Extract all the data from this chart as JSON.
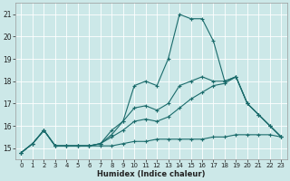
{
  "xlabel": "Humidex (Indice chaleur)",
  "bg_color": "#cce8e8",
  "grid_color": "#e0f0f0",
  "line_color": "#1a6b6b",
  "xlim": [
    -0.5,
    23.5
  ],
  "ylim": [
    14.5,
    21.5
  ],
  "xticks": [
    0,
    1,
    2,
    3,
    4,
    5,
    6,
    7,
    8,
    9,
    10,
    11,
    12,
    13,
    14,
    15,
    16,
    17,
    18,
    19,
    20,
    21,
    22,
    23
  ],
  "yticks": [
    15,
    16,
    17,
    18,
    19,
    20,
    21
  ],
  "series": [
    {
      "x": [
        0,
        1,
        2,
        3,
        4,
        5,
        6,
        7,
        8,
        9,
        10,
        11,
        12,
        13,
        14,
        15,
        16,
        17,
        18,
        19,
        20,
        21,
        22,
        23
      ],
      "y": [
        14.8,
        15.2,
        15.8,
        15.1,
        15.1,
        15.1,
        15.1,
        15.1,
        15.1,
        15.2,
        15.3,
        15.3,
        15.4,
        15.4,
        15.4,
        15.4,
        15.4,
        15.5,
        15.5,
        15.6,
        15.6,
        15.6,
        15.6,
        15.5
      ]
    },
    {
      "x": [
        0,
        1,
        2,
        3,
        4,
        5,
        6,
        7,
        8,
        9,
        10,
        11,
        12,
        13,
        14,
        15,
        16,
        17,
        18,
        19,
        20,
        21,
        22,
        23
      ],
      "y": [
        14.8,
        15.2,
        15.8,
        15.1,
        15.1,
        15.1,
        15.1,
        15.2,
        15.5,
        15.8,
        16.2,
        16.3,
        16.2,
        16.4,
        16.8,
        17.2,
        17.5,
        17.8,
        17.9,
        18.2,
        17.0,
        16.5,
        16.0,
        15.5
      ]
    },
    {
      "x": [
        0,
        1,
        2,
        3,
        4,
        5,
        6,
        7,
        8,
        9,
        10,
        11,
        12,
        13,
        14,
        15,
        16,
        17,
        18,
        19,
        20,
        21,
        22,
        23
      ],
      "y": [
        14.8,
        15.2,
        15.8,
        15.1,
        15.1,
        15.1,
        15.1,
        15.2,
        15.6,
        16.2,
        16.8,
        16.9,
        16.7,
        17.0,
        17.8,
        18.0,
        18.2,
        18.0,
        18.0,
        18.2,
        17.0,
        16.5,
        16.0,
        15.5
      ]
    },
    {
      "x": [
        0,
        1,
        2,
        3,
        4,
        5,
        6,
        7,
        8,
        9,
        10,
        11,
        12,
        13,
        14,
        15,
        16,
        17,
        18,
        19,
        20,
        21,
        22,
        23
      ],
      "y": [
        14.8,
        15.2,
        15.8,
        15.1,
        15.1,
        15.1,
        15.1,
        15.2,
        15.8,
        16.2,
        17.8,
        18.0,
        17.8,
        19.0,
        21.0,
        20.8,
        20.8,
        19.8,
        18.0,
        18.2,
        17.0,
        16.5,
        16.0,
        15.5
      ]
    }
  ]
}
